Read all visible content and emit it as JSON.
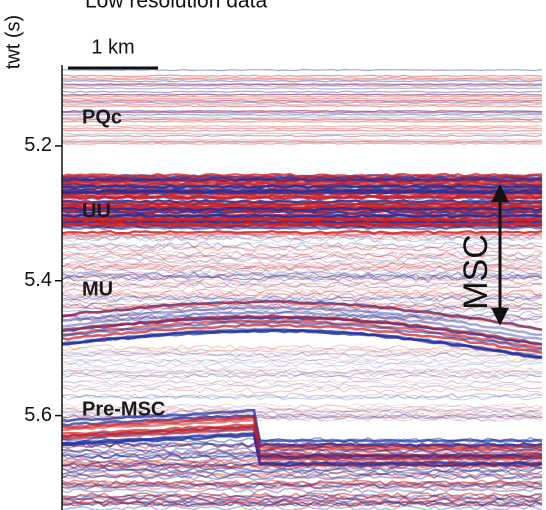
{
  "title": "Low resolution data",
  "axis": {
    "label": "twt (s)",
    "ylim": [
      5.08,
      5.74
    ],
    "ticks": [
      5.2,
      5.4,
      5.6
    ]
  },
  "scale_bar": "1 km",
  "units": [
    "PQc",
    "UU",
    "MU",
    "Pre-MSC"
  ],
  "interval": "MSC"
}
